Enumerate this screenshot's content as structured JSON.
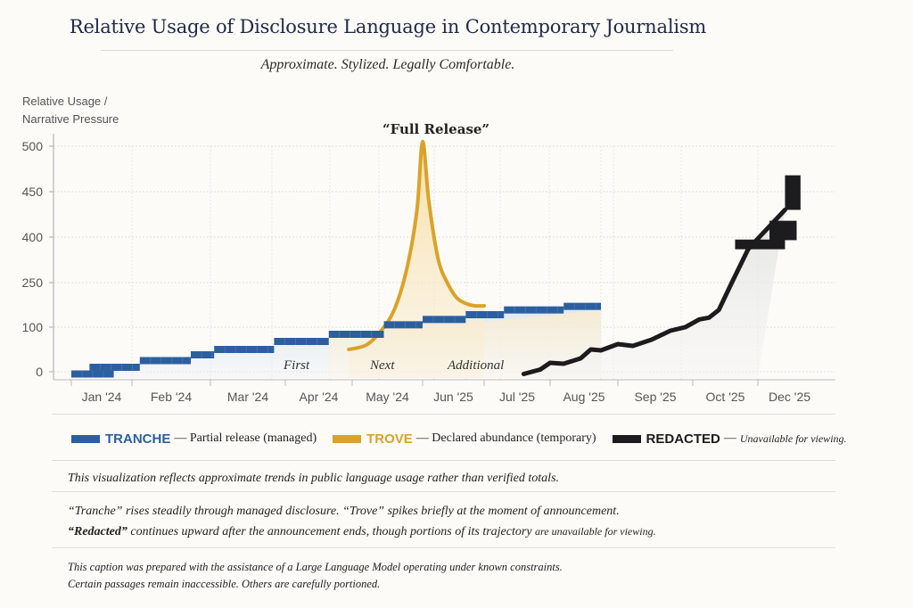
{
  "header": {
    "title": "Relative Usage of Disclosure Language in Contemporary Journalism",
    "subtitle": "Approximate. Stylized. Legally Comfortable."
  },
  "chart_data": {
    "type": "line",
    "title": "Relative Usage of Disclosure Language in Contemporary Journalism",
    "subtitle": "Approximate. Stylized. Legally Comfortable.",
    "ylabel_lines": [
      "Relative Usage  /",
      "Narrative Pressure"
    ],
    "xlabel": "",
    "categories": [
      "Jan '24",
      "Feb '24",
      "Mar '24",
      "Apr '24",
      "May '24",
      "Jun '25",
      "Jul '25",
      "Aug '25",
      "Sep '25",
      "Oct '25",
      "Dec '25"
    ],
    "yticks": [
      0,
      100,
      250,
      400,
      450,
      500
    ],
    "ylim": [
      -10,
      510
    ],
    "grid": true,
    "legend_position": "bottom",
    "annotations": {
      "peak_label": "“Full Release”",
      "first": "First",
      "next": "Next",
      "additional": "Additional"
    },
    "series": [
      {
        "name": "TRANCHE",
        "style": "step",
        "color": "#2c5f9e",
        "fill": "#dbe6f2",
        "steps": [
          {
            "x0": 0.0,
            "x1": 0.7,
            "y": -5
          },
          {
            "x0": 0.3,
            "x1": 1.1,
            "y": 10
          },
          {
            "x0": 1.1,
            "x1": 1.75,
            "y": 25
          },
          {
            "x0": 1.75,
            "x1": 2.05,
            "y": 38
          },
          {
            "x0": 2.05,
            "x1": 2.85,
            "y": 50
          },
          {
            "x0": 2.85,
            "x1": 3.65,
            "y": 68
          },
          {
            "x0": 3.65,
            "x1": 4.45,
            "y": 84
          },
          {
            "x0": 4.45,
            "x1": 5.0,
            "y": 108
          },
          {
            "x0": 5.0,
            "x1": 5.7,
            "y": 126
          },
          {
            "x0": 5.7,
            "x1": 6.3,
            "y": 142
          },
          {
            "x0": 6.3,
            "x1": 7.2,
            "y": 158
          },
          {
            "x0": 7.2,
            "x1": 7.75,
            "y": 170
          }
        ]
      },
      {
        "name": "TROVE",
        "style": "curve",
        "color": "#d9a32a",
        "fill": "#f7e3b6",
        "points": [
          [
            3.95,
            50
          ],
          [
            4.2,
            60
          ],
          [
            4.4,
            90
          ],
          [
            4.6,
            160
          ],
          [
            4.78,
            300
          ],
          [
            4.92,
            430
          ],
          [
            5.0,
            505
          ],
          [
            5.1,
            440
          ],
          [
            5.25,
            330
          ],
          [
            5.4,
            250
          ],
          [
            5.55,
            200
          ],
          [
            5.7,
            180
          ],
          [
            5.85,
            172
          ],
          [
            6.0,
            172
          ]
        ]
      },
      {
        "name": "REDACTED",
        "style": "line",
        "color": "#1c1c1e",
        "fill": "#e4e4e4",
        "points": [
          [
            6.6,
            -5
          ],
          [
            6.85,
            5
          ],
          [
            7.0,
            20
          ],
          [
            7.2,
            18
          ],
          [
            7.45,
            30
          ],
          [
            7.6,
            50
          ],
          [
            7.75,
            48
          ],
          [
            8.0,
            62
          ],
          [
            8.2,
            58
          ],
          [
            8.45,
            72
          ],
          [
            8.7,
            92
          ],
          [
            8.9,
            100
          ],
          [
            9.1,
            126
          ],
          [
            9.25,
            132
          ],
          [
            9.4,
            158
          ],
          [
            9.6,
            250
          ],
          [
            9.85,
            360
          ],
          [
            10.0,
            395
          ],
          [
            10.35,
            430
          ]
        ],
        "redaction_boxes": [
          {
            "x0": 9.65,
            "x1": 10.35,
            "y0": 360,
            "y1": 392
          },
          {
            "x0": 10.15,
            "x1": 10.5,
            "y0": 390,
            "y1": 418
          },
          {
            "x0": 10.35,
            "x1": 10.55,
            "y0": 430,
            "y1": 468
          }
        ]
      }
    ]
  },
  "legend": {
    "items": [
      {
        "name": "TRANCHE",
        "desc": "— Partial release (managed)",
        "color": "#2c5f9e"
      },
      {
        "name": "TROVE",
        "desc": "— Declared abundance (temporary)",
        "color": "#d9a32a"
      },
      {
        "name": "REDACTED",
        "desc": "—",
        "desc_small": "Unavailable for viewing.",
        "color": "#1c1c1e"
      }
    ]
  },
  "captions": {
    "line1": "This visualization reflects approximate trends in public language usage rather than verified totals.",
    "line2_a": "“Tranche”",
    "line2_b": " rises steadily through managed disclosure. ",
    "line2_c": "“Trove”",
    "line2_d": " spikes briefly at the moment of announcement.",
    "line3_a": "“Redacted”",
    "line3_b": " continues upward after the announcement ends, though portions of its trajectory ",
    "line3_c": "are unavailable for viewing.",
    "footer1": "This caption was prepared with the assistance of a Large Language Model operating under known constraints.",
    "footer2": "Certain passages remain inaccessible. Others are carefully portioned."
  }
}
